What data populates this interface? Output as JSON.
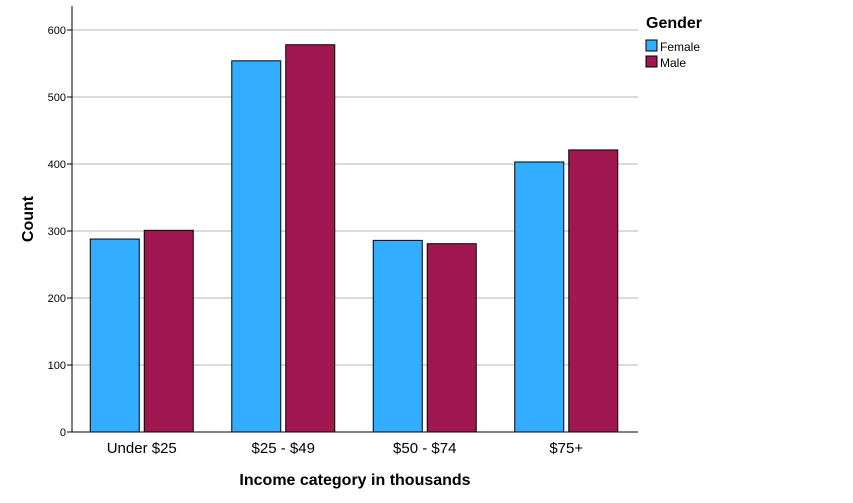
{
  "chart_data": {
    "type": "bar",
    "categories": [
      "Under $25",
      "$25 - $49",
      "$50 - $74",
      "$75+"
    ],
    "series": [
      {
        "name": "Female",
        "values": [
          288,
          554,
          286,
          403
        ],
        "color": "#33adff"
      },
      {
        "name": "Male",
        "values": [
          301,
          578,
          281,
          421
        ],
        "color": "#a0184f"
      }
    ],
    "xlabel": "Income category in thousands",
    "ylabel": "Count",
    "ylim": [
      0,
      600
    ],
    "yticks": [
      0,
      100,
      200,
      300,
      400,
      500,
      600
    ],
    "grid": true,
    "legend": {
      "title": "Gender",
      "position": "top-right"
    }
  }
}
